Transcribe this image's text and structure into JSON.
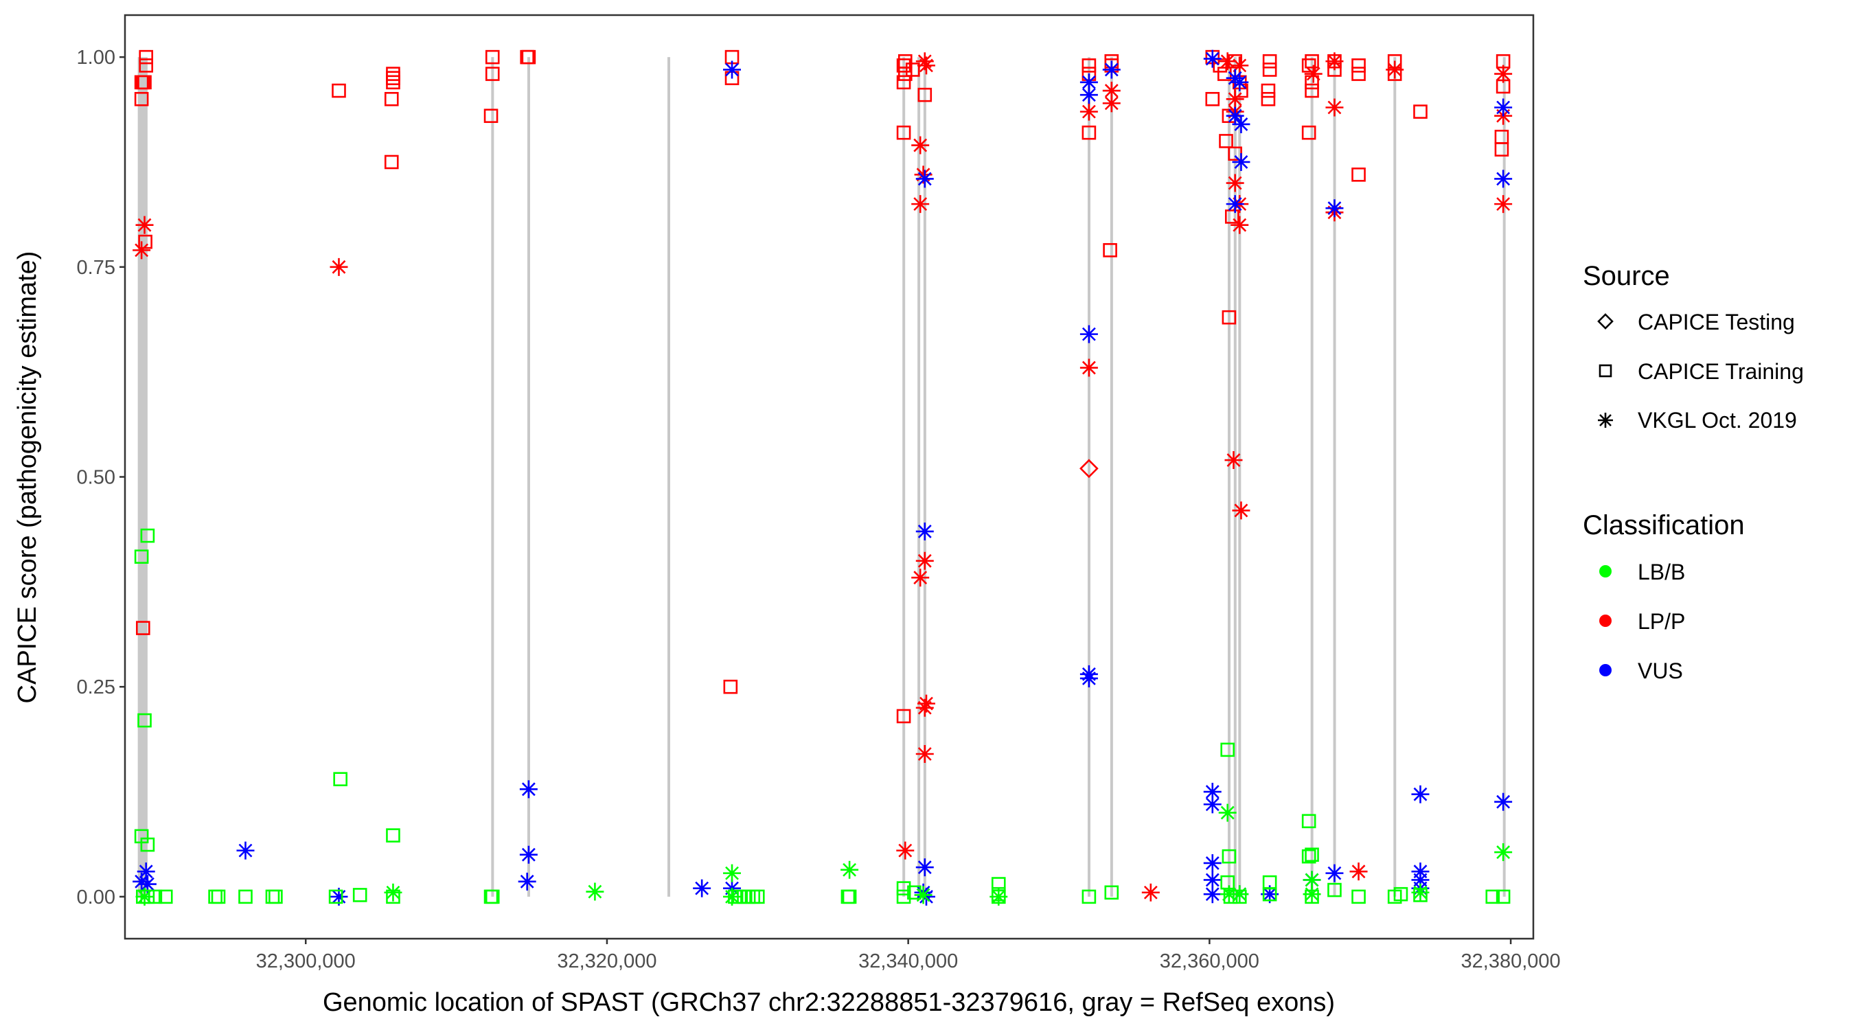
{
  "chart_data": {
    "type": "scatter",
    "title": "",
    "xlabel": "Genomic location of SPAST (GRCh37 chr2:32288851-32379616, gray = RefSeq exons)",
    "ylabel": "CAPICE score (pathogenicity estimate)",
    "xlim": [
      32288000,
      32381500
    ],
    "ylim": [
      -0.05,
      1.05
    ],
    "x_ticks": [
      32300000,
      32320000,
      32340000,
      32360000,
      32380000
    ],
    "x_tick_labels": [
      "32,300,000",
      "32,320,000",
      "32,340,000",
      "32,360,000",
      "32,380,000"
    ],
    "y_ticks": [
      0,
      0.25,
      0.5,
      0.75,
      1.0
    ],
    "y_tick_labels": [
      "0.00",
      "0.25",
      "0.50",
      "0.75",
      "1.00"
    ],
    "grid": false,
    "legend_position": "right",
    "legend": {
      "source_title": "Source",
      "source_items": [
        {
          "label": "CAPICE Testing",
          "shape": "diamond"
        },
        {
          "label": "CAPICE Training",
          "shape": "square"
        },
        {
          "label": "VKGL Oct. 2019",
          "shape": "asterisk"
        }
      ],
      "classification_title": "Classification",
      "classification_items": [
        {
          "label": "LB/B",
          "color": "#00ff00"
        },
        {
          "label": "LP/P",
          "color": "#ff0000"
        },
        {
          "label": "VUS",
          "color": "#0000ff"
        }
      ]
    },
    "exons": [
      [
        32288851,
        32289500
      ],
      [
        32312400,
        32312450
      ],
      [
        32314800,
        32314850
      ],
      [
        32324100,
        32324150
      ],
      [
        32339700,
        32339750
      ],
      [
        32340700,
        32340750
      ],
      [
        32341100,
        32341150
      ],
      [
        32352000,
        32352050
      ],
      [
        32353500,
        32353550
      ],
      [
        32361300,
        32361350
      ],
      [
        32361700,
        32361750
      ],
      [
        32362000,
        32362050
      ],
      [
        32366800,
        32366850
      ],
      [
        32368300,
        32368350
      ],
      [
        32372300,
        32372350
      ],
      [
        32379500,
        32379616
      ]
    ],
    "series": [
      {
        "source": "CAPICE Training",
        "classification": "LP/P",
        "points": [
          [
            32289100,
            0.97
          ],
          [
            32289200,
            0.97
          ],
          [
            32289300,
            0.97
          ],
          [
            32289100,
            0.95
          ],
          [
            32289400,
            1.0
          ],
          [
            32289400,
            0.99
          ],
          [
            32289350,
            0.78
          ],
          [
            32289200,
            0.32
          ],
          [
            32302200,
            0.96
          ],
          [
            32305800,
            0.98
          ],
          [
            32305800,
            0.975
          ],
          [
            32305800,
            0.97
          ],
          [
            32305700,
            0.95
          ],
          [
            32305700,
            0.875
          ],
          [
            32312400,
            1.0
          ],
          [
            32312400,
            0.98
          ],
          [
            32312300,
            0.93
          ],
          [
            32314800,
            1.0
          ],
          [
            32314700,
            1.0
          ],
          [
            32328300,
            1.0
          ],
          [
            32328300,
            0.975
          ],
          [
            32328200,
            0.25
          ],
          [
            32339700,
            0.97
          ],
          [
            32339800,
            0.98
          ],
          [
            32339700,
            0.99
          ],
          [
            32339700,
            0.91
          ],
          [
            32339800,
            0.995
          ],
          [
            32340300,
            0.985
          ],
          [
            32341100,
            0.955
          ],
          [
            32339700,
            0.215
          ],
          [
            32352000,
            0.99
          ],
          [
            32352000,
            0.98
          ],
          [
            32352000,
            0.91
          ],
          [
            32353500,
            0.995
          ],
          [
            32353500,
            0.99
          ],
          [
            32353400,
            0.77
          ],
          [
            32360200,
            1.0
          ],
          [
            32360200,
            0.95
          ],
          [
            32360700,
            0.99
          ],
          [
            32361000,
            0.98
          ],
          [
            32361300,
            0.93
          ],
          [
            32361100,
            0.9
          ],
          [
            32361300,
            0.69
          ],
          [
            32361500,
            0.81
          ],
          [
            32361700,
            0.885
          ],
          [
            32361700,
            0.995
          ],
          [
            32362000,
            0.97
          ],
          [
            32362100,
            0.96
          ],
          [
            32364000,
            0.995
          ],
          [
            32364000,
            0.985
          ],
          [
            32363900,
            0.96
          ],
          [
            32363900,
            0.95
          ],
          [
            32366600,
            0.99
          ],
          [
            32366600,
            0.91
          ],
          [
            32366800,
            0.995
          ],
          [
            32366800,
            0.96
          ],
          [
            32366800,
            0.97
          ],
          [
            32368300,
            0.995
          ],
          [
            32368300,
            0.985
          ],
          [
            32369900,
            0.99
          ],
          [
            32369900,
            0.98
          ],
          [
            32369900,
            0.86
          ],
          [
            32372300,
            0.995
          ],
          [
            32372300,
            0.98
          ],
          [
            32374000,
            0.935
          ],
          [
            32379500,
            0.995
          ],
          [
            32379500,
            0.965
          ],
          [
            32379400,
            0.905
          ],
          [
            32379400,
            0.89
          ]
        ]
      },
      {
        "source": "VKGL Oct. 2019",
        "classification": "LP/P",
        "points": [
          [
            32289300,
            0.8
          ],
          [
            32289100,
            0.77
          ],
          [
            32302200,
            0.75
          ],
          [
            32339800,
            0.055
          ],
          [
            32340800,
            0.895
          ],
          [
            32341000,
            0.86
          ],
          [
            32340800,
            0.825
          ],
          [
            32340800,
            0.38
          ],
          [
            32341100,
            0.4
          ],
          [
            32341200,
            0.23
          ],
          [
            32341100,
            0.225
          ],
          [
            32341100,
            0.17
          ],
          [
            32341200,
            0.99
          ],
          [
            32341100,
            0.995
          ],
          [
            32352000,
            0.935
          ],
          [
            32352000,
            0.63
          ],
          [
            32353500,
            0.96
          ],
          [
            32353500,
            0.945
          ],
          [
            32356100,
            0.005
          ],
          [
            32361200,
            0.995
          ],
          [
            32361700,
            0.935
          ],
          [
            32361700,
            0.95
          ],
          [
            32361700,
            0.85
          ],
          [
            32362000,
            0.825
          ],
          [
            32362000,
            0.8
          ],
          [
            32361600,
            0.52
          ],
          [
            32362100,
            0.46
          ],
          [
            32362000,
            0.99
          ],
          [
            32366900,
            0.98
          ],
          [
            32368300,
            0.94
          ],
          [
            32368300,
            0.815
          ],
          [
            32368300,
            0.995
          ],
          [
            32369900,
            0.03
          ],
          [
            32372300,
            0.985
          ],
          [
            32379500,
            0.98
          ],
          [
            32379500,
            0.93
          ],
          [
            32379500,
            0.825
          ]
        ]
      },
      {
        "source": "CAPICE Testing",
        "classification": "LP/P",
        "points": [
          [
            32352000,
            0.51
          ]
        ]
      },
      {
        "source": "VKGL Oct. 2019",
        "classification": "VUS",
        "points": [
          [
            32289100,
            0.018
          ],
          [
            32289400,
            0.03
          ],
          [
            32289500,
            0.015
          ],
          [
            32296000,
            0.055
          ],
          [
            32302200,
            0.0
          ],
          [
            32314800,
            0.128
          ],
          [
            32314800,
            0.05
          ],
          [
            32314700,
            0.018
          ],
          [
            32326300,
            0.01
          ],
          [
            32328300,
            0.01
          ],
          [
            32328300,
            0.985
          ],
          [
            32341100,
            0.435
          ],
          [
            32341100,
            0.855
          ],
          [
            32341100,
            0.035
          ],
          [
            32341000,
            0.005
          ],
          [
            32341200,
            0.0
          ],
          [
            32352000,
            0.97
          ],
          [
            32352000,
            0.955
          ],
          [
            32352000,
            0.67
          ],
          [
            32352000,
            0.265
          ],
          [
            32352000,
            0.26
          ],
          [
            32353500,
            0.985
          ],
          [
            32360200,
            0.998
          ],
          [
            32360200,
            0.125
          ],
          [
            32360200,
            0.11
          ],
          [
            32360200,
            0.04
          ],
          [
            32360200,
            0.02
          ],
          [
            32360200,
            0.003
          ],
          [
            32361700,
            0.975
          ],
          [
            32362000,
            0.97
          ],
          [
            32361700,
            0.93
          ],
          [
            32362100,
            0.92
          ],
          [
            32362100,
            0.875
          ],
          [
            32361700,
            0.825
          ],
          [
            32362000,
            0.003
          ],
          [
            32364000,
            0.003
          ],
          [
            32366800,
            0.02
          ],
          [
            32368300,
            0.82
          ],
          [
            32368300,
            0.028
          ],
          [
            32374000,
            0.122
          ],
          [
            32374000,
            0.03
          ],
          [
            32374000,
            0.02
          ],
          [
            32374000,
            0.01
          ],
          [
            32379500,
            0.94
          ],
          [
            32379500,
            0.855
          ],
          [
            32379500,
            0.113
          ]
        ]
      },
      {
        "source": "CAPICE Training",
        "classification": "LB/B",
        "points": [
          [
            32289100,
            0.405
          ],
          [
            32289500,
            0.43
          ],
          [
            32289300,
            0.21
          ],
          [
            32289100,
            0.072
          ],
          [
            32289500,
            0.062
          ],
          [
            32289200,
            0.0
          ],
          [
            32289500,
            0.0
          ],
          [
            32290000,
            0.0
          ],
          [
            32290700,
            0.0
          ],
          [
            32294000,
            0.0
          ],
          [
            32294200,
            0.0
          ],
          [
            32296000,
            0.0
          ],
          [
            32297800,
            0.0
          ],
          [
            32298000,
            0.0
          ],
          [
            32302000,
            0.0
          ],
          [
            32302300,
            0.14
          ],
          [
            32303600,
            0.002
          ],
          [
            32305800,
            0.073
          ],
          [
            32305800,
            0.0
          ],
          [
            32312400,
            0.0
          ],
          [
            32312300,
            0.0
          ],
          [
            32328500,
            0.0
          ],
          [
            32328800,
            0.0
          ],
          [
            32329100,
            0.0
          ],
          [
            32329400,
            0.0
          ],
          [
            32329700,
            0.0
          ],
          [
            32330000,
            0.0
          ],
          [
            32336000,
            0.0
          ],
          [
            32336100,
            0.0
          ],
          [
            32339700,
            0.01
          ],
          [
            32339700,
            0.0
          ],
          [
            32340400,
            0.005
          ],
          [
            32346000,
            0.015
          ],
          [
            32346000,
            0.003
          ],
          [
            32346000,
            0.0
          ],
          [
            32352000,
            0.0
          ],
          [
            32353500,
            0.005
          ],
          [
            32361200,
            0.175
          ],
          [
            32361300,
            0.048
          ],
          [
            32361200,
            0.017
          ],
          [
            32361400,
            0.0
          ],
          [
            32362000,
            0.0
          ],
          [
            32364000,
            0.017
          ],
          [
            32364000,
            0.003
          ],
          [
            32366600,
            0.09
          ],
          [
            32366600,
            0.048
          ],
          [
            32366800,
            0.05
          ],
          [
            32366800,
            0.0
          ],
          [
            32368300,
            0.008
          ],
          [
            32369900,
            0.0
          ],
          [
            32372300,
            0.0
          ],
          [
            32372700,
            0.003
          ],
          [
            32374000,
            0.002
          ],
          [
            32378800,
            0.0
          ],
          [
            32379500,
            0.0
          ]
        ]
      },
      {
        "source": "VKGL Oct. 2019",
        "classification": "LB/B",
        "points": [
          [
            32289300,
            0.0
          ],
          [
            32305800,
            0.005
          ],
          [
            32319200,
            0.006
          ],
          [
            32328300,
            0.028
          ],
          [
            32328300,
            0.0
          ],
          [
            32336100,
            0.032
          ],
          [
            32341000,
            0.002
          ],
          [
            32346000,
            0.0
          ],
          [
            32361200,
            0.1
          ],
          [
            32361300,
            0.003
          ],
          [
            32362000,
            0.003
          ],
          [
            32366800,
            0.02
          ],
          [
            32366800,
            0.003
          ],
          [
            32374000,
            0.005
          ],
          [
            32379500,
            0.053
          ]
        ]
      }
    ]
  }
}
